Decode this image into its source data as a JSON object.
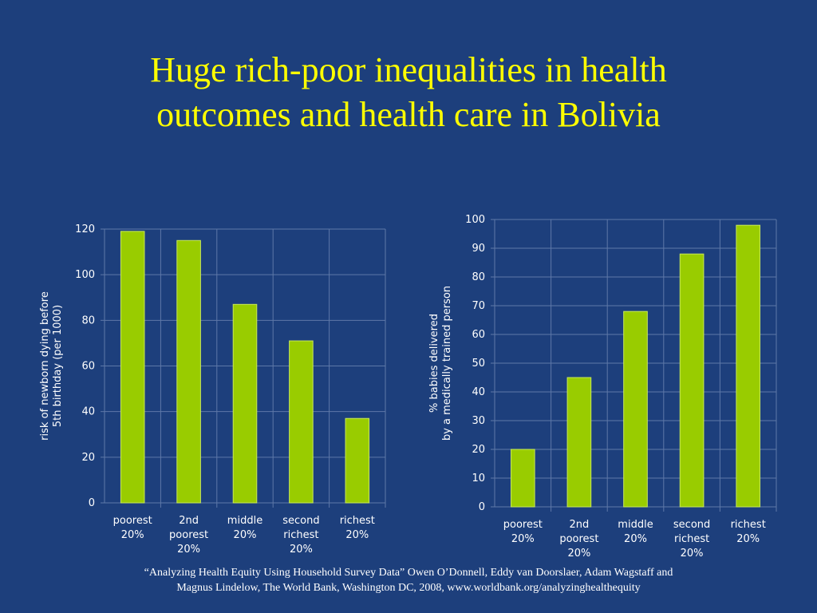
{
  "title": {
    "line1": "Huge rich-poor inequalities in health",
    "line2": "outcomes and health care in Bolivia"
  },
  "citation": {
    "line1": "“Analyzing Health Equity Using Household Survey Data” Owen O’Donnell, Eddy van Doorslaer, Adam Wagstaff and",
    "line2": "Magnus Lindelow, The World Bank, Washington DC, 2008, www.worldbank.org/analyzinghealthequity"
  },
  "colors": {
    "background": "#1d3f7c",
    "title": "#ffff00",
    "bar": "#99cc00",
    "bar_edge": "#c8e85a",
    "grid": "#5e78a8",
    "text": "#ffffff"
  },
  "chart_data": [
    {
      "type": "bar",
      "categories": [
        [
          "poorest",
          "20%"
        ],
        [
          "2nd",
          "poorest",
          "20%"
        ],
        [
          "middle",
          "20%"
        ],
        [
          "second",
          "richest",
          "20%"
        ],
        [
          "richest",
          "20%"
        ]
      ],
      "values": [
        119,
        115,
        87,
        71,
        37
      ],
      "ylabel": [
        "risk of newborn dying before",
        "5th birthday  (per 1000)"
      ],
      "ylim": [
        0,
        120
      ],
      "yticks": [
        0,
        20,
        40,
        60,
        80,
        100,
        120
      ],
      "grid": true
    },
    {
      "type": "bar",
      "categories": [
        [
          "poorest",
          "20%"
        ],
        [
          "2nd",
          "poorest",
          "20%"
        ],
        [
          "middle",
          "20%"
        ],
        [
          "second",
          "richest",
          "20%"
        ],
        [
          "richest",
          "20%"
        ]
      ],
      "values": [
        20,
        45,
        68,
        88,
        98
      ],
      "ylabel": [
        "% babies delivered",
        "by a medically trained person"
      ],
      "ylim": [
        0,
        100
      ],
      "yticks": [
        0,
        10,
        20,
        30,
        40,
        50,
        60,
        70,
        80,
        90,
        100
      ],
      "grid": true
    }
  ]
}
